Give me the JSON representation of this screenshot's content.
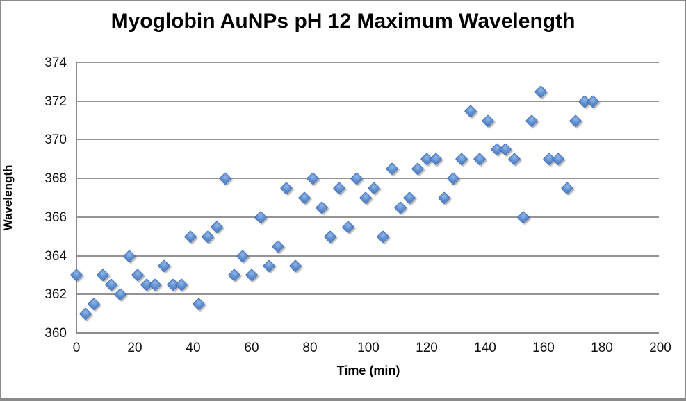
{
  "chart_data": {
    "type": "scatter",
    "title": "Myoglobin AuNPs pH 12 Maximum Wavelength",
    "xlabel": "Time (min)",
    "ylabel": "Wavelength",
    "xlim": [
      0,
      200
    ],
    "ylim": [
      360,
      374
    ],
    "x_ticks": [
      0,
      20,
      40,
      60,
      80,
      100,
      120,
      140,
      160,
      180,
      200
    ],
    "y_ticks": [
      360,
      362,
      364,
      366,
      368,
      370,
      372,
      374
    ],
    "grid": true,
    "legend": "none",
    "marker": "diamond",
    "points": [
      [
        0,
        363
      ],
      [
        3,
        361
      ],
      [
        6,
        361.5
      ],
      [
        9,
        363
      ],
      [
        12,
        362.5
      ],
      [
        15,
        362
      ],
      [
        18,
        364
      ],
      [
        21,
        363
      ],
      [
        24,
        362.5
      ],
      [
        27,
        362.5
      ],
      [
        30,
        363.5
      ],
      [
        33,
        362.5
      ],
      [
        36,
        362.5
      ],
      [
        39,
        365
      ],
      [
        42,
        361.5
      ],
      [
        45,
        365
      ],
      [
        48,
        365.5
      ],
      [
        51,
        368
      ],
      [
        54,
        363
      ],
      [
        57,
        364
      ],
      [
        60,
        363
      ],
      [
        63,
        366
      ],
      [
        66,
        363.5
      ],
      [
        69,
        364.5
      ],
      [
        72,
        367.5
      ],
      [
        75,
        363.5
      ],
      [
        78,
        367
      ],
      [
        81,
        368
      ],
      [
        84,
        366.5
      ],
      [
        87,
        365
      ],
      [
        90,
        367.5
      ],
      [
        93,
        365.5
      ],
      [
        96,
        368
      ],
      [
        99,
        367
      ],
      [
        102,
        367.5
      ],
      [
        105,
        365
      ],
      [
        108,
        368.5
      ],
      [
        111,
        366.5
      ],
      [
        114,
        367
      ],
      [
        117,
        368.5
      ],
      [
        120,
        369
      ],
      [
        123,
        369
      ],
      [
        126,
        367
      ],
      [
        129,
        368
      ],
      [
        132,
        369
      ],
      [
        135,
        371.5
      ],
      [
        138,
        369
      ],
      [
        141,
        371
      ],
      [
        144,
        369.5
      ],
      [
        147,
        369.5
      ],
      [
        150,
        369
      ],
      [
        153,
        366
      ],
      [
        156,
        371
      ],
      [
        159,
        372.5
      ],
      [
        162,
        369
      ],
      [
        165,
        369
      ],
      [
        168,
        367.5
      ],
      [
        171,
        371
      ],
      [
        174,
        372
      ],
      [
        177,
        372
      ]
    ]
  },
  "colors": {
    "marker_fill": "#6695d4",
    "marker_fill_highlight": "#93b8e8",
    "marker_border": "#3c6cb4",
    "gridline": "#949494",
    "axis_line": "#8c8c8c",
    "frame_border": "#8a8a8a",
    "text": "#000000",
    "background": "#ffffff"
  }
}
